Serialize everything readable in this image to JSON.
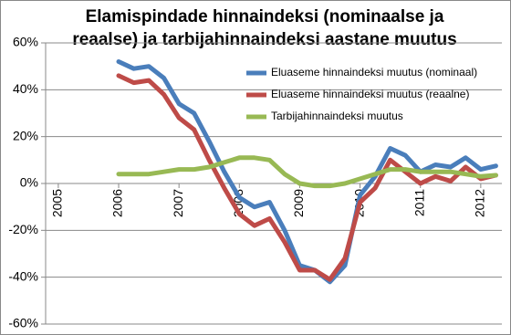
{
  "chart_data": {
    "type": "line",
    "title": [
      "Elamispindade hinnaindeksi (nominaalse ja",
      "reaalse) ja tarbijahinnaindeksi aastane muutus"
    ],
    "x": [
      2006,
      2006.25,
      2006.5,
      2006.75,
      2007,
      2007.25,
      2007.5,
      2007.75,
      2008,
      2008.25,
      2008.5,
      2008.75,
      2009,
      2009.25,
      2009.5,
      2009.75,
      2010,
      2010.25,
      2010.5,
      2010.75,
      2011,
      2011.25,
      2011.5,
      2011.75,
      2012,
      2012.25
    ],
    "series": [
      {
        "name": "Eluaseme hinnaindeksi muutus (nominaal)",
        "color": "#4a7ebb",
        "values": [
          52,
          49,
          50,
          45,
          34,
          30,
          18,
          5,
          -6,
          -10,
          -8,
          -20,
          -35,
          -37,
          -42,
          -35,
          -5,
          3,
          15,
          12,
          5,
          8,
          7,
          11,
          6,
          7.5
        ]
      },
      {
        "name": "Eluaseme hinnaindeksi muutus (reaalne)",
        "color": "#be4b48",
        "values": [
          46,
          43,
          44,
          38,
          28,
          23,
          10,
          -2,
          -13,
          -18,
          -15,
          -25,
          -37,
          -37,
          -41,
          -32,
          -8,
          -2,
          10,
          5,
          0,
          3,
          1,
          7,
          2,
          3.5
        ]
      },
      {
        "name": "Tarbijahinnaindeksi muutus",
        "color": "#98b954",
        "values": [
          4,
          4,
          4,
          5,
          6,
          6,
          7,
          9,
          11,
          11,
          10,
          4,
          0,
          -1,
          -1,
          0,
          2,
          4,
          6,
          6,
          5,
          5,
          5,
          4,
          3,
          3.5
        ]
      }
    ],
    "xlim": [
      2004.79,
      2012.35
    ],
    "xticks": [
      2005,
      2006,
      2007,
      2008,
      2009,
      2010,
      2011,
      2012
    ],
    "ylim": [
      -60,
      60
    ],
    "yticks": [
      {
        "value": -60,
        "label": "-60%"
      },
      {
        "value": -40,
        "label": "-40%"
      },
      {
        "value": -20,
        "label": "-20%"
      },
      {
        "value": 0,
        "label": "0%"
      },
      {
        "value": 20,
        "label": "20%"
      },
      {
        "value": 40,
        "label": "40%"
      },
      {
        "value": 60,
        "label": "60%"
      }
    ],
    "grid": true,
    "legend": "top-right"
  }
}
